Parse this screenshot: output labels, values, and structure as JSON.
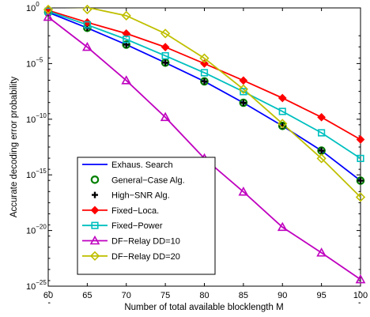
{
  "chart_data": {
    "type": "line",
    "xlabel": "Number of total available blocklength M",
    "ylabel": "Accurate decoding error probability",
    "xlim": [
      60,
      100
    ],
    "ylim_exponent": [
      -25,
      0
    ],
    "yscale": "log",
    "grid": false,
    "legend_placement": "lower-left",
    "x": [
      60,
      65,
      70,
      75,
      80,
      85,
      90,
      95,
      100
    ],
    "x_tick_labels": [
      "60",
      "65",
      "70",
      "75",
      "80",
      "85",
      "90",
      "95",
      "100"
    ],
    "y_tick_labels": [
      {
        "base": "10",
        "exp": "0",
        "value": 1
      },
      {
        "base": "10",
        "exp": "−5",
        "value": 1e-05
      },
      {
        "base": "10",
        "exp": "−10",
        "value": 1e-10
      },
      {
        "base": "10",
        "exp": "−15",
        "value": 1e-15
      },
      {
        "base": "10",
        "exp": "−20",
        "value": 1e-20
      },
      {
        "base": "10",
        "exp": "−25",
        "value": 1e-25
      }
    ],
    "series": [
      {
        "name": "Exhaus. Search",
        "color": "#0000ff",
        "marker": "none",
        "values": [
          0.4,
          0.016,
          0.0005,
          1.2e-05,
          2.5e-07,
          3e-09,
          2.5e-11,
          1.5e-13,
          3e-16
        ]
      },
      {
        "name": "General−Case Alg.",
        "color": "#008000",
        "marker": "circle",
        "values": [
          0.4,
          0.016,
          0.0005,
          1.2e-05,
          2.5e-07,
          3e-09,
          2.5e-11,
          1.5e-13,
          3e-16
        ]
      },
      {
        "name": "High−SNR Alg.",
        "color": "#000000",
        "marker": "plus",
        "values": [
          0.4,
          0.016,
          0.0005,
          1.2e-05,
          2.5e-07,
          3e-09,
          2.5e-11,
          1.5e-13,
          3e-16
        ]
      },
      {
        "name": "Fixed−Loca.",
        "color": "#ff0000",
        "marker": "diamond-filled",
        "values": [
          0.6,
          0.05,
          0.005,
          0.0003,
          1e-05,
          3e-07,
          8e-09,
          1.5e-10,
          1.5e-12
        ]
      },
      {
        "name": "Fixed−Power",
        "color": "#00bfbf",
        "marker": "square",
        "values": [
          0.5,
          0.03,
          0.0015,
          5e-05,
          1.5e-06,
          3e-08,
          5e-10,
          6e-12,
          3e-14
        ]
      },
      {
        "name": "DF−Relay DD=10",
        "color": "#bf00bf",
        "marker": "triangle",
        "values": [
          0.15,
          0.0003,
          3e-07,
          1.5e-10,
          3e-14,
          3e-17,
          2e-20,
          1e-22,
          4e-25
        ]
      },
      {
        "name": "DF−Relay DD=20",
        "color": "#bfbf00",
        "marker": "diamond",
        "values": [
          1.2,
          1.1,
          0.2,
          0.005,
          3e-05,
          5e-08,
          4e-11,
          3e-14,
          1e-17
        ]
      }
    ]
  }
}
